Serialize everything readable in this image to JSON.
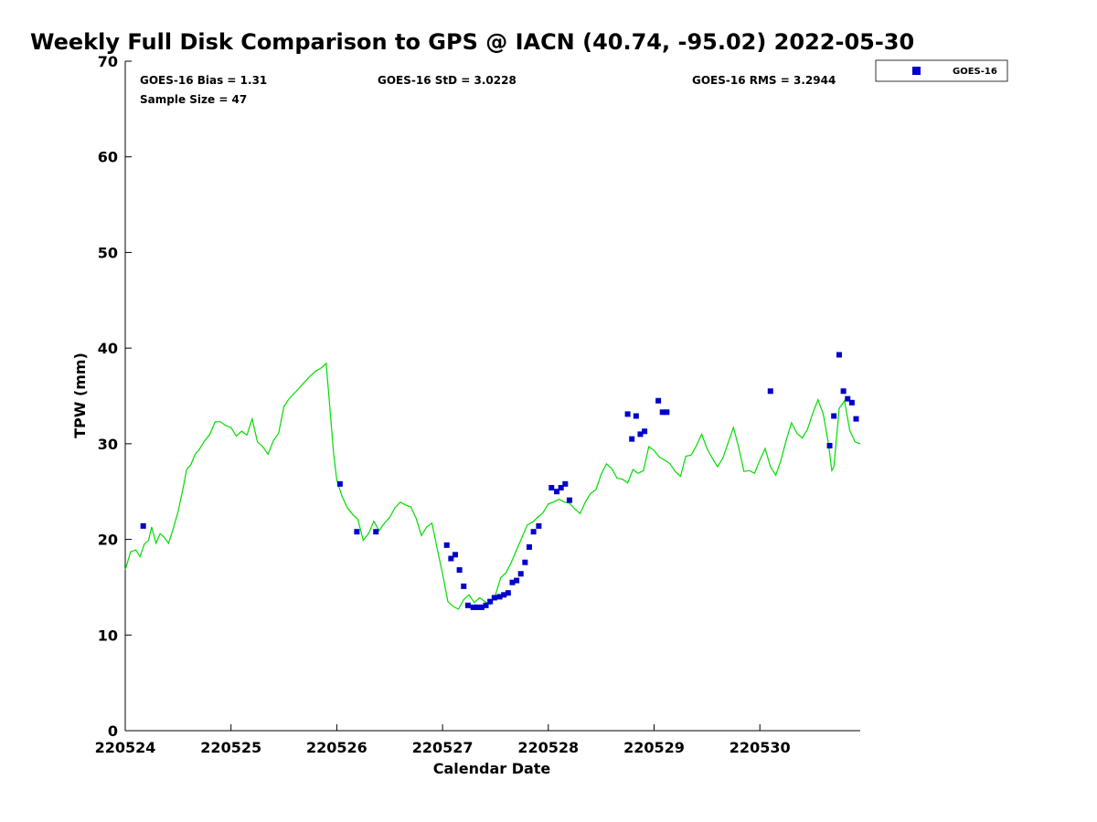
{
  "chart_data": {
    "type": "scatter",
    "title": "Weekly Full Disk Comparison to GPS @ IACN (40.74, -95.02) 2022-05-30",
    "xlabel": "Calendar Date",
    "ylabel": "TPW (mm)",
    "xlim": [
      "220524",
      "220531"
    ],
    "ylim": [
      0,
      70
    ],
    "x_ticks": [
      "220524",
      "220525",
      "220526",
      "220527",
      "220528",
      "220529",
      "220530"
    ],
    "y_ticks": [
      0,
      10,
      20,
      30,
      40,
      50,
      60,
      70
    ],
    "grid": false,
    "legend": {
      "placement": "top-right",
      "entries": [
        "GOES-16"
      ]
    },
    "stats": {
      "bias": "GOES-16 Bias = 1.31",
      "std": "GOES-16 StD = 3.0228",
      "rms": "GOES-16 RMS = 3.2944",
      "sample_size": "Sample Size = 47"
    },
    "colors": {
      "goes16": "#0000cc",
      "gps_line": "#00dd00"
    },
    "series": [
      {
        "name": "GOES-16",
        "marker": "square",
        "points": [
          [
            0.17,
            21.4
          ],
          [
            2.03,
            25.8
          ],
          [
            2.19,
            20.8
          ],
          [
            2.37,
            20.8
          ],
          [
            3.04,
            19.4
          ],
          [
            3.08,
            18.0
          ],
          [
            3.12,
            18.4
          ],
          [
            3.16,
            16.8
          ],
          [
            3.2,
            15.1
          ],
          [
            3.24,
            13.1
          ],
          [
            3.29,
            12.9
          ],
          [
            3.33,
            12.9
          ],
          [
            3.37,
            12.9
          ],
          [
            3.41,
            13.1
          ],
          [
            3.45,
            13.5
          ],
          [
            3.49,
            13.9
          ],
          [
            3.54,
            14.0
          ],
          [
            3.58,
            14.2
          ],
          [
            3.62,
            14.4
          ],
          [
            3.66,
            15.5
          ],
          [
            3.7,
            15.7
          ],
          [
            3.74,
            16.4
          ],
          [
            3.78,
            17.6
          ],
          [
            3.82,
            19.2
          ],
          [
            3.86,
            20.8
          ],
          [
            3.91,
            21.4
          ],
          [
            4.03,
            25.4
          ],
          [
            4.08,
            25.0
          ],
          [
            4.12,
            25.4
          ],
          [
            4.16,
            25.8
          ],
          [
            4.2,
            24.1
          ],
          [
            4.75,
            33.1
          ],
          [
            4.79,
            30.5
          ],
          [
            4.83,
            32.9
          ],
          [
            4.87,
            31.0
          ],
          [
            4.91,
            31.3
          ],
          [
            5.04,
            34.5
          ],
          [
            5.08,
            33.3
          ],
          [
            5.12,
            33.3
          ],
          [
            6.1,
            35.5
          ],
          [
            6.66,
            29.8
          ],
          [
            6.7,
            32.9
          ],
          [
            6.75,
            39.3
          ],
          [
            6.79,
            35.5
          ],
          [
            6.83,
            34.7
          ],
          [
            6.87,
            34.3
          ],
          [
            6.91,
            32.6
          ]
        ]
      },
      {
        "line": true,
        "points": [
          [
            0.0,
            16.8
          ],
          [
            0.05,
            18.7
          ],
          [
            0.1,
            18.9
          ],
          [
            0.14,
            18.2
          ],
          [
            0.18,
            19.5
          ],
          [
            0.22,
            19.9
          ],
          [
            0.25,
            21.3
          ],
          [
            0.29,
            19.6
          ],
          [
            0.33,
            20.6
          ],
          [
            0.37,
            20.2
          ],
          [
            0.41,
            19.6
          ],
          [
            0.45,
            21.0
          ],
          [
            0.5,
            22.9
          ],
          [
            0.55,
            25.5
          ],
          [
            0.58,
            27.3
          ],
          [
            0.62,
            27.8
          ],
          [
            0.66,
            28.9
          ],
          [
            0.7,
            29.4
          ],
          [
            0.75,
            30.3
          ],
          [
            0.8,
            31.0
          ],
          [
            0.85,
            32.3
          ],
          [
            0.9,
            32.3
          ],
          [
            0.95,
            31.9
          ],
          [
            1.0,
            31.7
          ],
          [
            1.05,
            30.8
          ],
          [
            1.1,
            31.3
          ],
          [
            1.15,
            30.9
          ],
          [
            1.2,
            32.6
          ],
          [
            1.25,
            30.2
          ],
          [
            1.3,
            29.7
          ],
          [
            1.35,
            28.9
          ],
          [
            1.4,
            30.3
          ],
          [
            1.45,
            31.1
          ],
          [
            1.5,
            33.9
          ],
          [
            1.55,
            34.7
          ],
          [
            1.6,
            35.3
          ],
          [
            1.65,
            35.9
          ],
          [
            1.7,
            36.5
          ],
          [
            1.75,
            37.1
          ],
          [
            1.8,
            37.6
          ],
          [
            1.85,
            37.9
          ],
          [
            1.9,
            38.4
          ],
          [
            1.94,
            33.0
          ],
          [
            1.97,
            29.0
          ],
          [
            2.0,
            26.2
          ],
          [
            2.05,
            24.5
          ],
          [
            2.1,
            23.3
          ],
          [
            2.15,
            22.6
          ],
          [
            2.2,
            22.1
          ],
          [
            2.25,
            19.9
          ],
          [
            2.3,
            20.6
          ],
          [
            2.35,
            21.9
          ],
          [
            2.4,
            20.9
          ],
          [
            2.45,
            21.7
          ],
          [
            2.5,
            22.3
          ],
          [
            2.55,
            23.3
          ],
          [
            2.6,
            23.9
          ],
          [
            2.65,
            23.6
          ],
          [
            2.7,
            23.4
          ],
          [
            2.75,
            22.2
          ],
          [
            2.8,
            20.4
          ],
          [
            2.85,
            21.3
          ],
          [
            2.9,
            21.7
          ],
          [
            2.95,
            19.0
          ],
          [
            3.0,
            16.4
          ],
          [
            3.05,
            13.5
          ],
          [
            3.1,
            13.0
          ],
          [
            3.15,
            12.7
          ],
          [
            3.2,
            13.7
          ],
          [
            3.25,
            14.2
          ],
          [
            3.3,
            13.4
          ],
          [
            3.35,
            13.9
          ],
          [
            3.4,
            13.5
          ],
          [
            3.45,
            13.2
          ],
          [
            3.5,
            14.2
          ],
          [
            3.55,
            16.0
          ],
          [
            3.6,
            16.5
          ],
          [
            3.65,
            17.6
          ],
          [
            3.7,
            18.9
          ],
          [
            3.75,
            20.2
          ],
          [
            3.8,
            21.5
          ],
          [
            3.85,
            21.8
          ],
          [
            3.9,
            22.3
          ],
          [
            3.95,
            22.8
          ],
          [
            4.0,
            23.7
          ],
          [
            4.05,
            23.9
          ],
          [
            4.1,
            24.2
          ],
          [
            4.15,
            23.9
          ],
          [
            4.2,
            23.8
          ],
          [
            4.25,
            23.2
          ],
          [
            4.3,
            22.7
          ],
          [
            4.35,
            23.9
          ],
          [
            4.4,
            24.8
          ],
          [
            4.45,
            25.2
          ],
          [
            4.5,
            26.8
          ],
          [
            4.55,
            27.9
          ],
          [
            4.6,
            27.4
          ],
          [
            4.65,
            26.4
          ],
          [
            4.7,
            26.3
          ],
          [
            4.75,
            25.9
          ],
          [
            4.8,
            27.3
          ],
          [
            4.85,
            26.9
          ],
          [
            4.9,
            27.2
          ],
          [
            4.95,
            29.7
          ],
          [
            5.0,
            29.3
          ],
          [
            5.05,
            28.6
          ],
          [
            5.1,
            28.3
          ],
          [
            5.15,
            27.9
          ],
          [
            5.2,
            27.1
          ],
          [
            5.25,
            26.6
          ],
          [
            5.3,
            28.7
          ],
          [
            5.35,
            28.8
          ],
          [
            5.4,
            29.8
          ],
          [
            5.45,
            31.0
          ],
          [
            5.5,
            29.5
          ],
          [
            5.55,
            28.5
          ],
          [
            5.6,
            27.6
          ],
          [
            5.65,
            28.5
          ],
          [
            5.7,
            30.1
          ],
          [
            5.75,
            31.7
          ],
          [
            5.8,
            29.6
          ],
          [
            5.85,
            27.1
          ],
          [
            5.9,
            27.2
          ],
          [
            5.95,
            26.9
          ],
          [
            6.0,
            28.3
          ],
          [
            6.05,
            29.5
          ],
          [
            6.1,
            27.6
          ],
          [
            6.15,
            26.7
          ],
          [
            6.2,
            28.3
          ],
          [
            6.25,
            30.4
          ],
          [
            6.3,
            32.2
          ],
          [
            6.35,
            31.1
          ],
          [
            6.4,
            30.6
          ],
          [
            6.45,
            31.5
          ],
          [
            6.5,
            33.2
          ],
          [
            6.55,
            34.6
          ],
          [
            6.6,
            33.1
          ],
          [
            6.65,
            29.9
          ],
          [
            6.68,
            27.2
          ],
          [
            6.7,
            27.6
          ],
          [
            6.75,
            33.7
          ],
          [
            6.8,
            34.5
          ],
          [
            6.85,
            31.4
          ],
          [
            6.9,
            30.2
          ],
          [
            6.95,
            30.0
          ]
        ]
      }
    ]
  }
}
